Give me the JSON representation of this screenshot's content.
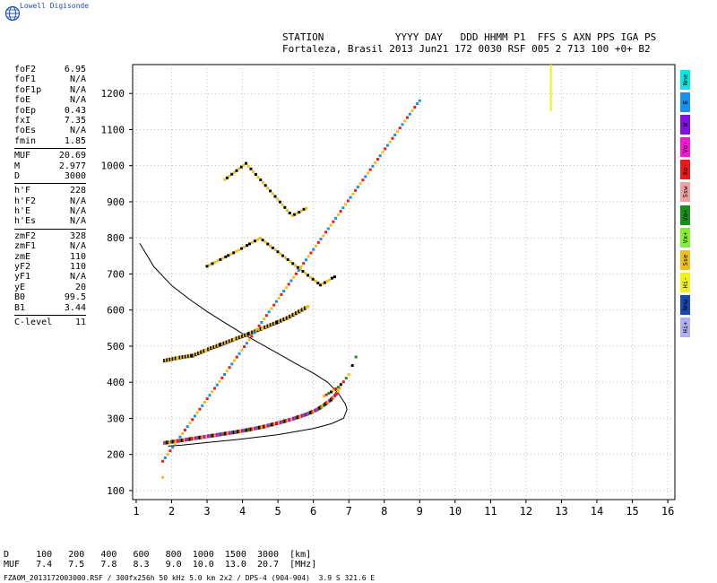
{
  "brand": {
    "name": "Lowell Digisonde",
    "color": "#1e4fb0"
  },
  "header": {
    "line1": "STATION            YYYY DAY   DDD HHMM P1  FFS S AXN PPS IGA PS",
    "line2": "Fortaleza, Brasil 2013 Jun21 172 0030 RSF 005 2 713 100 +0+ B2"
  },
  "params": [
    {
      "label": "foF2",
      "value": "6.95"
    },
    {
      "label": "foF1",
      "value": "N/A"
    },
    {
      "label": "foF1p",
      "value": "N/A"
    },
    {
      "label": "foE",
      "value": "N/A"
    },
    {
      "label": "foEp",
      "value": "0.43"
    },
    {
      "label": "fxI",
      "value": "7.35"
    },
    {
      "label": "foEs",
      "value": "N/A"
    },
    {
      "label": "fmin",
      "value": "1.85"
    },
    {
      "label": "MUF",
      "value": "20.69",
      "sep": true
    },
    {
      "label": "M",
      "value": "2.977"
    },
    {
      "label": "D",
      "value": "3000"
    },
    {
      "label": "h'F",
      "value": "228",
      "sep": true
    },
    {
      "label": "h'F2",
      "value": "N/A"
    },
    {
      "label": "h'E",
      "value": "N/A"
    },
    {
      "label": "h'Es",
      "value": "N/A"
    },
    {
      "label": "zmF2",
      "value": "328",
      "sep": true
    },
    {
      "label": "zmF1",
      "value": "N/A"
    },
    {
      "label": "zmE",
      "value": "110"
    },
    {
      "label": "yF2",
      "value": "110"
    },
    {
      "label": "yF1",
      "value": "N/A"
    },
    {
      "label": "yE",
      "value": "20"
    },
    {
      "label": "B0",
      "value": "99.5"
    },
    {
      "label": "B1",
      "value": "3.44"
    },
    {
      "label": "C-level",
      "value": "11",
      "sep": true
    }
  ],
  "legend": [
    {
      "label": "Nne",
      "color": "#00e8e8"
    },
    {
      "label": "E",
      "color": "#1890f0"
    },
    {
      "label": "W",
      "color": "#8010e0"
    },
    {
      "label": "Vo-",
      "color": "#f018d0"
    },
    {
      "label": "Xo-",
      "color": "#f01818"
    },
    {
      "label": "Ssw",
      "color": "#f0a0a0"
    },
    {
      "label": "Vo+",
      "color": "#189018"
    },
    {
      "label": "Vx+",
      "color": "#80f030"
    },
    {
      "label": "Sse",
      "color": "#f0c018"
    },
    {
      "label": "Hi-",
      "color": "#f0f018"
    },
    {
      "label": "Nnw",
      "color": "#1848b0"
    },
    {
      "label": "Hi+",
      "color": "#b0b0f0"
    }
  ],
  "muf_table": {
    "head": "D     100   200   400   600   800  1000  1500  3000  [km]",
    "row": "MUF   7.4   7.5   7.8   8.3   9.0  10.0  13.0  20.7  [MHz]"
  },
  "footer": "FZA0M_2013172003000.RSF / 300fx256h 50 kHz 5.0 km 2x2 / DPS-4 (904-904)  3.9 S 321.6 E",
  "chart_data": {
    "type": "scatter",
    "xlim": [
      0.9,
      16.2
    ],
    "ylim": [
      75,
      1280
    ],
    "xticks": [
      "1",
      "2",
      "3",
      "4",
      "5",
      "6",
      "7",
      "8",
      "9",
      "10",
      "11",
      "12",
      "13",
      "14",
      "15",
      "16"
    ],
    "yticks": [
      "100",
      "200",
      "300",
      "400",
      "500",
      "600",
      "700",
      "800",
      "900",
      "1000",
      "1100",
      "1200"
    ],
    "grid": true,
    "profile_curve": {
      "color": "#000000",
      "points": [
        [
          1.1,
          785
        ],
        [
          1.5,
          720
        ],
        [
          2.0,
          668
        ],
        [
          2.5,
          630
        ],
        [
          3.0,
          596
        ],
        [
          3.5,
          565
        ],
        [
          4.0,
          535
        ],
        [
          4.5,
          507
        ],
        [
          5.0,
          480
        ],
        [
          5.5,
          452
        ],
        [
          6.0,
          425
        ],
        [
          6.4,
          400
        ],
        [
          6.7,
          370
        ],
        [
          6.9,
          340
        ],
        [
          6.95,
          325
        ],
        [
          6.85,
          300
        ],
        [
          6.5,
          285
        ],
        [
          6.0,
          272
        ],
        [
          5.0,
          255
        ],
        [
          4.0,
          243
        ],
        [
          3.0,
          233
        ],
        [
          2.3,
          226
        ],
        [
          1.9,
          223
        ]
      ]
    },
    "traces": [
      {
        "name": "O-F2 trace",
        "dense": true,
        "colors": [
          "#f018d0",
          "#189018",
          "#000000",
          "#f01818",
          "#f0c018",
          "#8010e0"
        ],
        "points": [
          [
            1.8,
            232
          ],
          [
            2.0,
            235
          ],
          [
            2.3,
            239
          ],
          [
            2.6,
            244
          ],
          [
            3.0,
            250
          ],
          [
            3.4,
            256
          ],
          [
            3.8,
            262
          ],
          [
            4.2,
            269
          ],
          [
            4.6,
            277
          ],
          [
            5.0,
            287
          ],
          [
            5.4,
            298
          ],
          [
            5.8,
            311
          ],
          [
            6.1,
            324
          ],
          [
            6.3,
            337
          ],
          [
            6.5,
            352
          ],
          [
            6.65,
            368
          ],
          [
            6.75,
            384
          ]
        ]
      },
      {
        "name": "X-F2 trace",
        "dense": false,
        "colors": [
          "#f0c018",
          "#f01818",
          "#189018",
          "#000000"
        ],
        "points": [
          [
            6.3,
            360
          ],
          [
            6.5,
            372
          ],
          [
            6.7,
            385
          ],
          [
            6.85,
            400
          ],
          [
            7.0,
            420
          ],
          [
            7.1,
            445
          ],
          [
            7.2,
            470
          ]
        ]
      },
      {
        "name": "2F trace",
        "dense": true,
        "colors": [
          "#000000",
          "#f0c018"
        ],
        "points": [
          [
            1.8,
            460
          ],
          [
            2.2,
            468
          ],
          [
            2.6,
            474
          ],
          [
            3.0,
            490
          ],
          [
            3.4,
            505
          ],
          [
            3.8,
            520
          ],
          [
            4.2,
            535
          ],
          [
            4.6,
            551
          ],
          [
            5.0,
            567
          ],
          [
            5.3,
            580
          ],
          [
            5.6,
            596
          ],
          [
            5.85,
            610
          ]
        ]
      },
      {
        "name": "3F trace",
        "dense": false,
        "colors": [
          "#000000",
          "#f0c018"
        ],
        "points": [
          [
            3.0,
            720
          ],
          [
            3.3,
            735
          ],
          [
            3.6,
            750
          ],
          [
            3.9,
            765
          ],
          [
            4.2,
            782
          ],
          [
            4.5,
            798
          ],
          [
            6.2,
            668
          ],
          [
            6.45,
            682
          ],
          [
            6.6,
            692
          ]
        ]
      },
      {
        "name": "4F trace",
        "dense": false,
        "colors": [
          "#f0c018",
          "#000000"
        ],
        "points": [
          [
            3.5,
            960
          ],
          [
            3.7,
            975
          ],
          [
            3.9,
            990
          ],
          [
            4.1,
            1005
          ],
          [
            5.4,
            860
          ],
          [
            5.6,
            870
          ],
          [
            5.8,
            882
          ]
        ]
      },
      {
        "name": "isolated",
        "dense": false,
        "colors": [
          "#f0c018",
          "#f01818",
          "#1890f0"
        ],
        "points": [
          [
            1.75,
            135
          ],
          [
            1.75,
            180
          ],
          [
            9.0,
            1180
          ]
        ]
      }
    ],
    "vertical_marks": [
      {
        "x": 12.7,
        "y0": 1150,
        "y1": 1280,
        "color": "#f0f018"
      }
    ]
  }
}
